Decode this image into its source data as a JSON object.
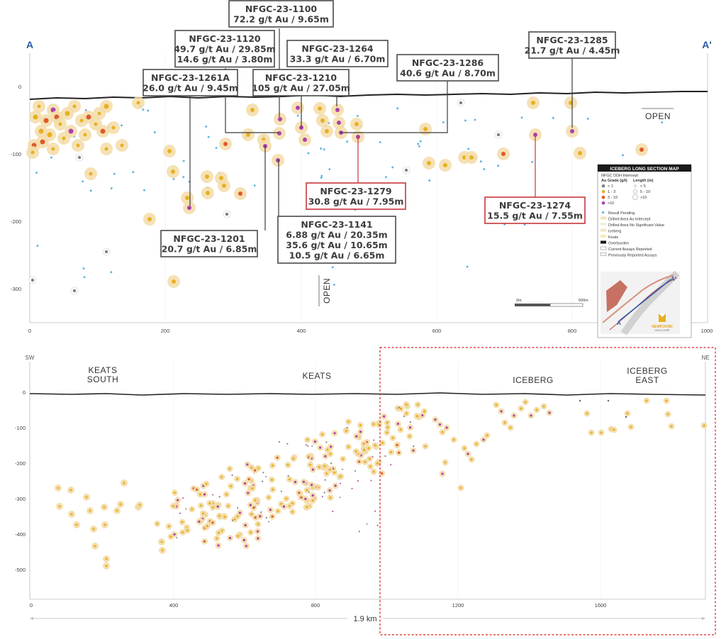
{
  "top_section": {
    "left_label": "A",
    "right_label": "A'",
    "open_right": "OPEN",
    "open_bottom": "OPEN",
    "y_ticks": [
      "0",
      "-100",
      "-200",
      "-300"
    ],
    "x_ticks": [
      "0",
      "200",
      "400",
      "600",
      "800",
      "1000"
    ]
  },
  "callouts": [
    {
      "id": "c1100",
      "lines": [
        "NFGC-23-1100",
        "72.2 g/t Au / 9.65m"
      ],
      "style": "gray"
    },
    {
      "id": "c1120",
      "lines": [
        "NFGC-23-1120",
        "49.7 g/t Au / 29.85m",
        "14.6 g/t Au / 3.80m"
      ],
      "style": "gray"
    },
    {
      "id": "c1264",
      "lines": [
        "NFGC-23-1264",
        "33.3 g/t Au / 6.70m"
      ],
      "style": "gray"
    },
    {
      "id": "c1285",
      "lines": [
        "NFGC-23-1285",
        "21.7 g/t Au / 4.45m"
      ],
      "style": "gray"
    },
    {
      "id": "c1286",
      "lines": [
        "NFGC-23-1286",
        "40.6 g/t Au / 8.70m"
      ],
      "style": "gray"
    },
    {
      "id": "c1261A",
      "lines": [
        "NFGC-23-1261A",
        "26.0 g/t Au / 9.45m"
      ],
      "style": "gray"
    },
    {
      "id": "c1210",
      "lines": [
        "NFGC-23-1210",
        "105 g/t Au / 27.05m"
      ],
      "style": "gray"
    },
    {
      "id": "c1279",
      "lines": [
        "NFGC-23-1279",
        "30.8 g/t Au / 7.95m"
      ],
      "style": "red"
    },
    {
      "id": "c1274",
      "lines": [
        "NFGC-23-1274",
        "15.5 g/t Au / 7.55m"
      ],
      "style": "red"
    },
    {
      "id": "c1201",
      "lines": [
        "NFGC-23-1201",
        "20.7 g/t Au / 6.85m"
      ],
      "style": "gray"
    },
    {
      "id": "c1141",
      "lines": [
        "NFGC-23-1141",
        "6.88 g/t Au / 20.35m",
        "35.6 g/t Au / 10.65m",
        "10.5 g/t Au / 6.65m"
      ],
      "style": "gray"
    }
  ],
  "legend": {
    "title": "ICEBERG LONG SECTION MAP",
    "subtitle": "NFGC DDH Intercept",
    "grade_header": "Au Grade (g/t)",
    "length_header": "Length (m)",
    "grades": [
      "< 1",
      "1 - 3",
      "3 - 10",
      ">10"
    ],
    "lengths": [
      "< 5",
      "5 - 10",
      ">10"
    ],
    "items": [
      "Result Pending",
      "Drilled Area Au Intercept",
      "Drilled Area No Significant Value",
      "Iceberg",
      "Keats",
      "Overburden",
      "Current Assays Reported",
      "Previously Reported Assays"
    ],
    "scale_left": "0m",
    "scale_right": "500m",
    "inset_label_a": "A",
    "inset_label_a2": "A'",
    "logo_line1": "NEWFOUND",
    "logo_line2": "GOLD CORP",
    "colors": {
      "lt1": "#808080",
      "g1_3": "#e8b020",
      "g3_10": "#e05a28",
      "gt10": "#b040a8",
      "pending": "#5ab4e0",
      "halo": "#f3dca8"
    }
  },
  "bottom_section": {
    "left_label": "SW",
    "right_label": "NE",
    "zones": [
      {
        "lines": [
          "KEATS",
          "SOUTH"
        ]
      },
      {
        "lines": [
          "KEATS"
        ]
      },
      {
        "lines": [
          "ICEBERG"
        ]
      },
      {
        "lines": [
          "ICEBERG",
          "EAST"
        ]
      }
    ],
    "y_ticks": [
      "0",
      "-100",
      "-200",
      "-300",
      "-400",
      "-500"
    ],
    "x_ticks": [
      "0",
      "400",
      "800",
      "1200",
      "1600"
    ],
    "distance_label": "1.9 km"
  }
}
